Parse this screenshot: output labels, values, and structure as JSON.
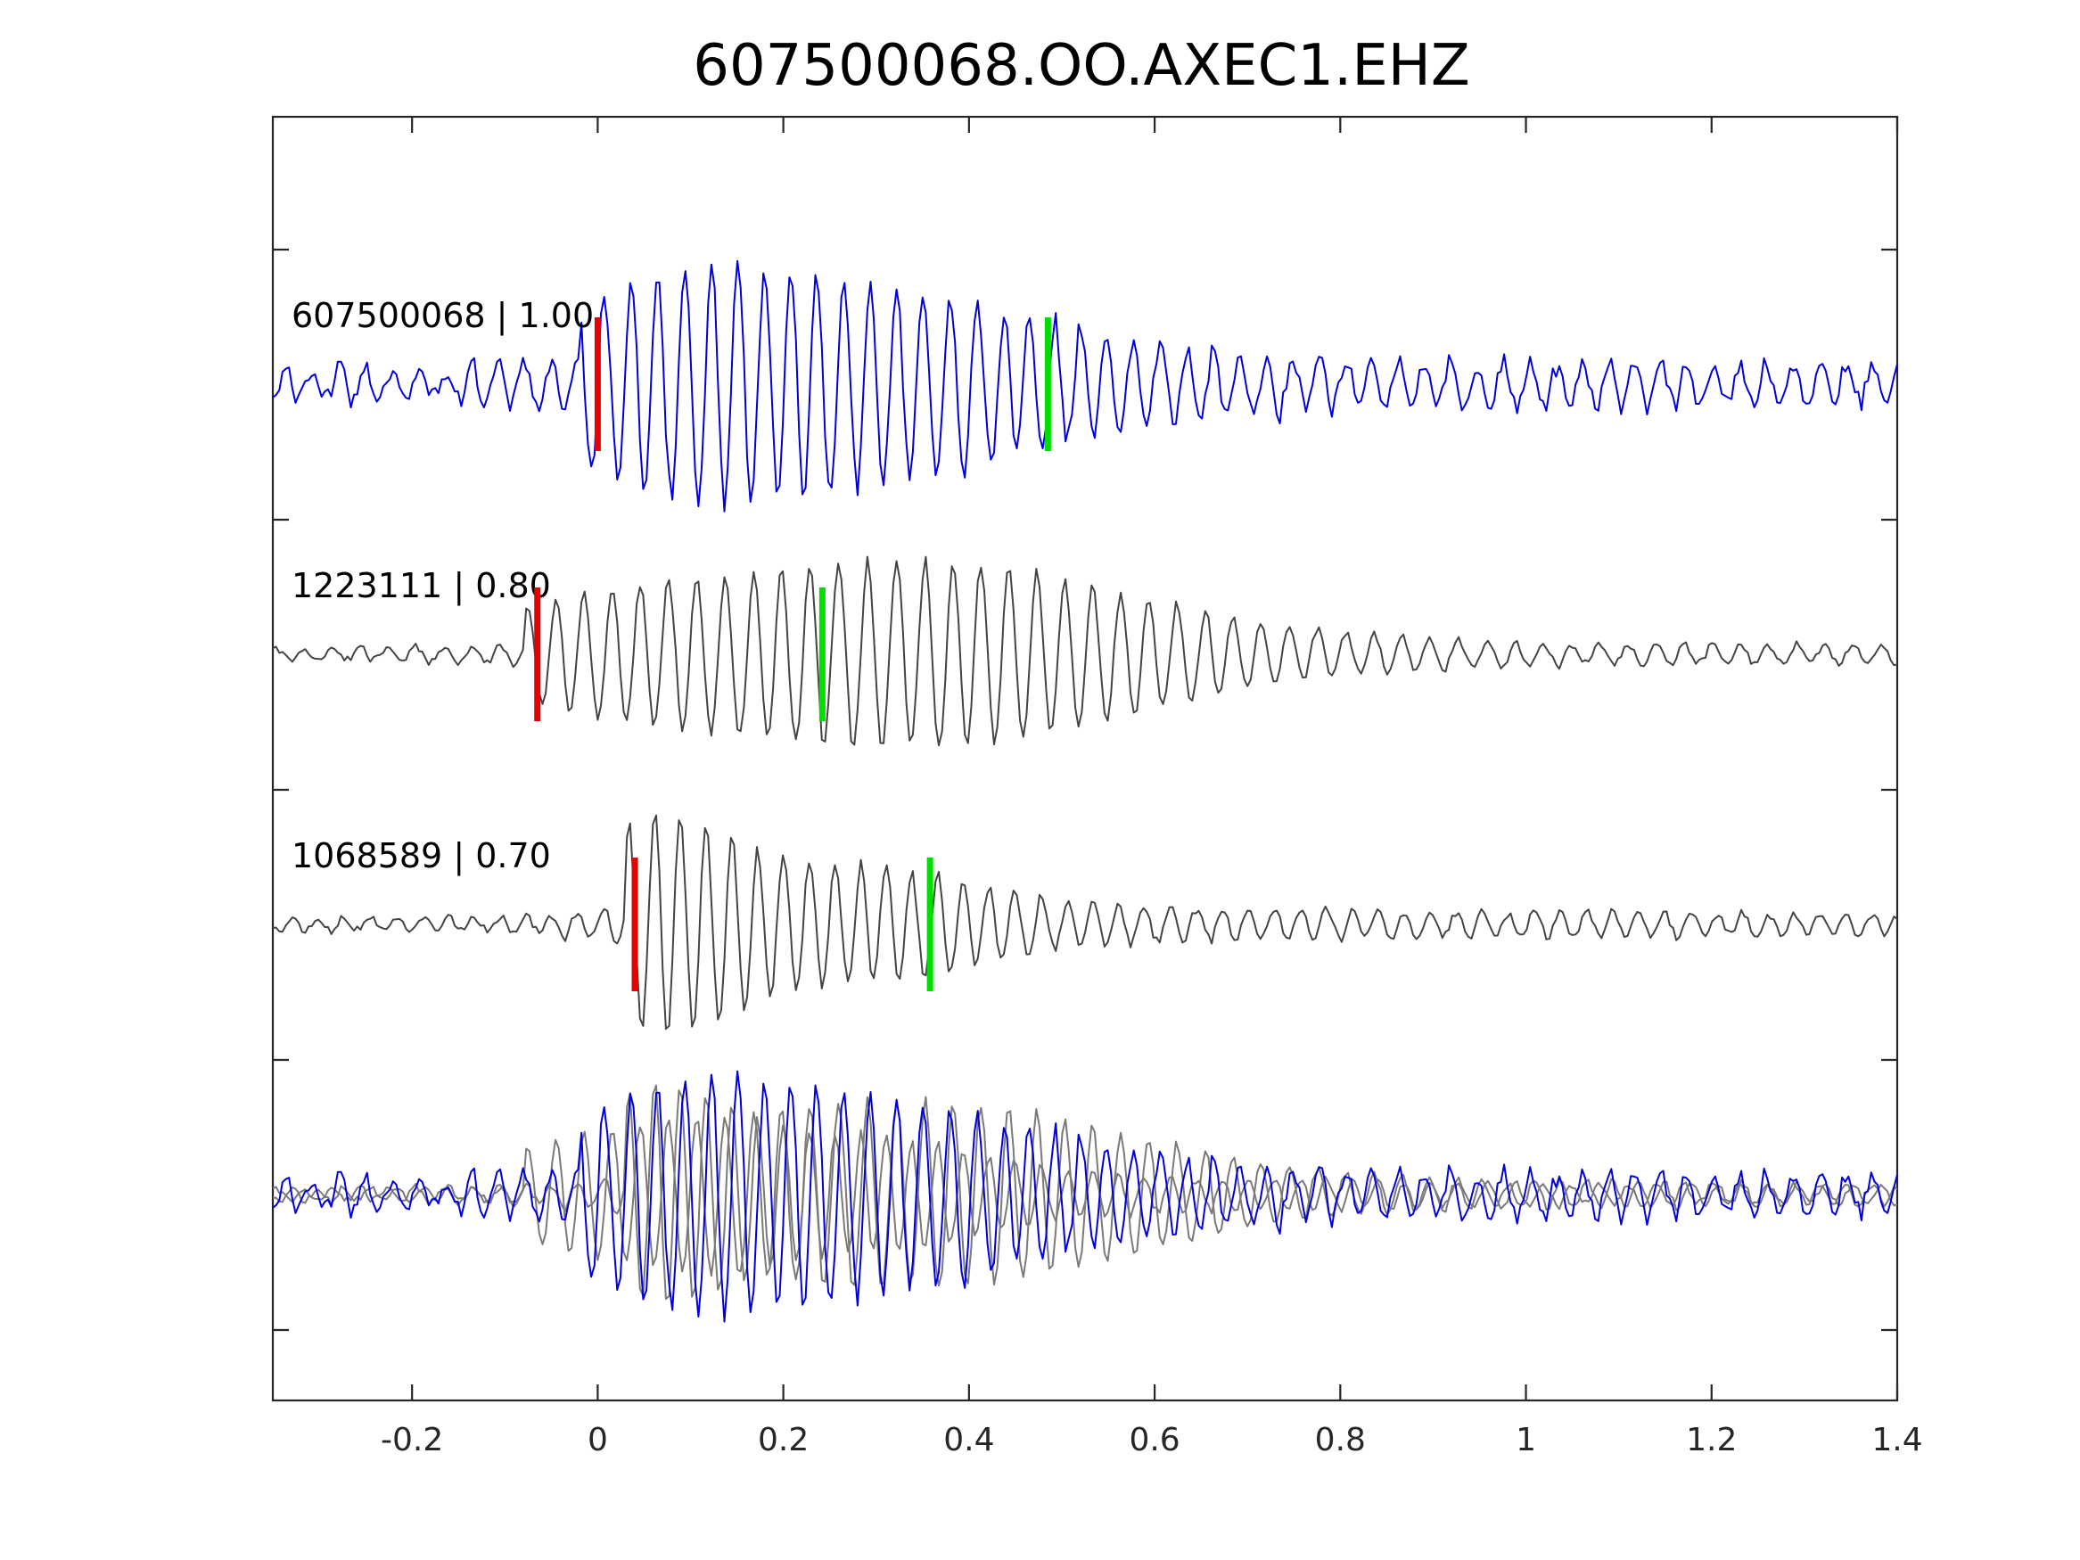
{
  "chart_data": {
    "type": "line",
    "title": "607500068.OO.AXEC1.EHZ",
    "xlabel": "",
    "ylabel": "",
    "xlim": [
      -0.35,
      1.4
    ],
    "x_ticks": [
      "-0.2",
      "0",
      "0.2",
      "0.4",
      "0.6",
      "0.8",
      "1",
      "1.2",
      "1.4"
    ],
    "x_tick_values": [
      -0.2,
      0,
      0.2,
      0.4,
      0.6,
      0.8,
      1.0,
      1.2,
      1.4
    ],
    "y_ticks_count": 9,
    "grid": false,
    "traces": [
      {
        "label": "607500068 | 1.00",
        "color": "#0000dd",
        "offset_level": 3,
        "noise_amp": 0.16,
        "envelope": [
          [
            0.2,
            0.3,
            0.15,
            0.75
          ],
          [
            0.05,
            0.1,
            0.08,
            0.3
          ]
        ],
        "onset": -0.02,
        "freq": 35,
        "p_pick": 0.0,
        "s_pick": 0.485
      },
      {
        "label": "1223111 | 0.80",
        "color": "#444444",
        "offset_level": 2,
        "noise_amp": 0.06,
        "envelope": [
          [
            0.3,
            0.4,
            0.17,
            0.8
          ],
          [
            0.0,
            0.05,
            0.08,
            0.2
          ]
        ],
        "onset": -0.08,
        "freq": 33,
        "p_pick": -0.065,
        "s_pick": 0.242
      },
      {
        "label": "1068589 | 0.70",
        "color": "#444444",
        "offset_level": 1,
        "noise_amp": 0.07,
        "envelope": [
          [
            0.05,
            0.08,
            0.06,
            0.8
          ],
          [
            0.25,
            0.3,
            0.1,
            0.4
          ]
        ],
        "onset": 0.03,
        "freq": 36,
        "p_pick": 0.04,
        "s_pick": 0.358
      }
    ],
    "overlay": {
      "offset_level": 0,
      "colors": [
        "#0000dd",
        "#7a7a7a",
        "#7a7a7a"
      ]
    },
    "pick_colors": {
      "p": "#e60000",
      "s": "#00dd00"
    }
  }
}
